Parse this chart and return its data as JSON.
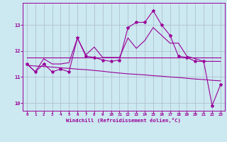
{
  "x": [
    0,
    1,
    2,
    3,
    4,
    5,
    6,
    7,
    8,
    9,
    10,
    11,
    12,
    13,
    14,
    15,
    16,
    17,
    18,
    19,
    20,
    21,
    22,
    23
  ],
  "curve_main": [
    11.5,
    11.2,
    11.5,
    11.2,
    11.3,
    11.2,
    12.5,
    11.8,
    11.75,
    11.65,
    11.6,
    11.65,
    12.9,
    13.1,
    13.1,
    13.55,
    13.0,
    12.6,
    11.8,
    11.75,
    11.6,
    11.6,
    9.9,
    10.7
  ],
  "curve_upper": [
    11.5,
    11.2,
    11.7,
    11.5,
    11.5,
    11.55,
    12.5,
    11.85,
    12.15,
    11.75,
    11.75,
    11.75,
    12.5,
    12.1,
    12.4,
    12.9,
    12.6,
    12.3,
    12.3,
    11.8,
    11.7,
    11.6,
    11.6,
    11.6
  ],
  "line_upper_flat": [
    11.75,
    11.75,
    11.75,
    11.75,
    11.75,
    11.75,
    11.75,
    11.75,
    11.75,
    11.75,
    11.75,
    11.75,
    11.75,
    11.75,
    11.75,
    11.75,
    11.75,
    11.75,
    11.75,
    11.75,
    11.75,
    11.75,
    11.75,
    11.75
  ],
  "line_lower_flat": [
    11.45,
    11.42,
    11.4,
    11.38,
    11.35,
    11.33,
    11.3,
    11.28,
    11.25,
    11.22,
    11.18,
    11.15,
    11.12,
    11.1,
    11.08,
    11.05,
    11.03,
    11.0,
    10.98,
    10.95,
    10.92,
    10.9,
    10.87,
    10.85
  ],
  "color": "#990099",
  "background_color": "#cce8f0",
  "grid_color": "#aabbcc",
  "xlabel": "Windchill (Refroidissement éolien,°C)",
  "ylim": [
    9.7,
    13.85
  ],
  "xlim": [
    -0.5,
    23.5
  ],
  "yticks": [
    10,
    11,
    12,
    13
  ],
  "xticks": [
    0,
    1,
    2,
    3,
    4,
    5,
    6,
    7,
    8,
    9,
    10,
    11,
    12,
    13,
    14,
    15,
    16,
    17,
    18,
    19,
    20,
    21,
    22,
    23
  ]
}
